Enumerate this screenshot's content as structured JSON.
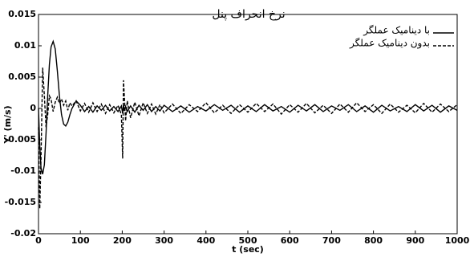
{
  "chart_data": {
    "type": "line",
    "title": "نرخ انحراف پنل",
    "xlabel": "t (sec)",
    "ylabel": "Y' (m/s)",
    "x": [
      0,
      3,
      6,
      10,
      14,
      18,
      22,
      26,
      30,
      35,
      40,
      45,
      50,
      55,
      60,
      65,
      70,
      75,
      80,
      90,
      100,
      110,
      120,
      130,
      140,
      150,
      160,
      170,
      180,
      190,
      198,
      201,
      203,
      205,
      208,
      212,
      220,
      230,
      240,
      250,
      260,
      270,
      280,
      290,
      300,
      320,
      340,
      360,
      380,
      400,
      420,
      440,
      460,
      480,
      500,
      520,
      540,
      560,
      580,
      600,
      620,
      640,
      660,
      680,
      700,
      720,
      740,
      760,
      780,
      800,
      820,
      840,
      860,
      880,
      900,
      920,
      940,
      960,
      980,
      1000
    ],
    "series": [
      {
        "name": "با دینامیک عملگر",
        "color": "#000000",
        "dash": false,
        "values": [
          0,
          -0.006,
          -0.0095,
          -0.0105,
          -0.009,
          -0.004,
          0.002,
          0.007,
          0.0098,
          0.0107,
          0.0095,
          0.006,
          0.002,
          -0.001,
          -0.0025,
          -0.0028,
          -0.0022,
          -0.001,
          0,
          0.0012,
          0.0005,
          -0.0005,
          0.0003,
          -0.0006,
          0.0004,
          -0.0003,
          0.0005,
          -0.0004,
          0.0003,
          -0.0005,
          0.0004,
          -0.0008,
          0.0006,
          -0.0004,
          0.0003,
          -0.0005,
          0.0004,
          -0.0006,
          0.0005,
          -0.0003,
          0.0006,
          -0.0005,
          0.0003,
          -0.0004,
          0.0005,
          -0.0005,
          0.0004,
          -0.0006,
          0.0003,
          -0.0004,
          0.0006,
          -0.0003,
          0.0005,
          -0.0006,
          0.0004,
          -0.0005,
          0.0006,
          -0.0004,
          0.0003,
          -0.0006,
          0.0005,
          -0.0004,
          0.0006,
          -0.0005,
          0.0004,
          -0.0003,
          0.0006,
          -0.0005,
          0.0004,
          -0.0006,
          0.0005,
          -0.0004,
          0.0003,
          -0.0005,
          0.0006,
          -0.0004,
          0.0005,
          -0.0006,
          0.0004,
          -0.0003
        ]
      },
      {
        "name": "بدون دینامیک عملگر",
        "color": "#000000",
        "dash": true,
        "values": [
          -0.003,
          -0.016,
          -0.008,
          0.0065,
          0.002,
          -0.003,
          -0.001,
          0.002,
          0.0015,
          -0.0005,
          0.001,
          0.0018,
          0.0008,
          0.0015,
          0.0005,
          0.0012,
          -0.0003,
          0.0009,
          0.0004,
          0.0012,
          -0.0004,
          0.0008,
          -0.0006,
          0.0009,
          -0.0005,
          0.0007,
          -0.0008,
          0.0006,
          -0.0007,
          0.0005,
          -0.001,
          -0.008,
          0.0045,
          0.002,
          -0.002,
          0.0012,
          -0.0015,
          0.001,
          -0.0012,
          0.0009,
          -0.0008,
          0.0007,
          -0.0009,
          0.0006,
          -0.0007,
          0.0007,
          -0.0008,
          0.0006,
          -0.0005,
          0.0009,
          -0.0007,
          0.0005,
          -0.0008,
          0.0006,
          -0.0006,
          0.0008,
          -0.0005,
          0.0007,
          -0.0009,
          0.0006,
          -0.0006,
          0.0008,
          -0.0007,
          0.0005,
          -0.0008,
          0.0007,
          -0.0006,
          0.0009,
          -0.0005,
          0.0006,
          -0.0008,
          0.0007,
          -0.0006,
          0.0005,
          -0.0007,
          0.0008,
          -0.0006,
          0.0007,
          -0.0005,
          0.0006
        ]
      }
    ],
    "xlim": [
      0,
      1000
    ],
    "xticks": [
      0,
      100,
      200,
      300,
      400,
      500,
      600,
      700,
      800,
      900,
      1000
    ],
    "ylim": [
      -0.02,
      0.015
    ],
    "yticks": [
      -0.02,
      -0.015,
      -0.01,
      -0.005,
      0,
      0.005,
      0.01,
      0.015
    ]
  }
}
